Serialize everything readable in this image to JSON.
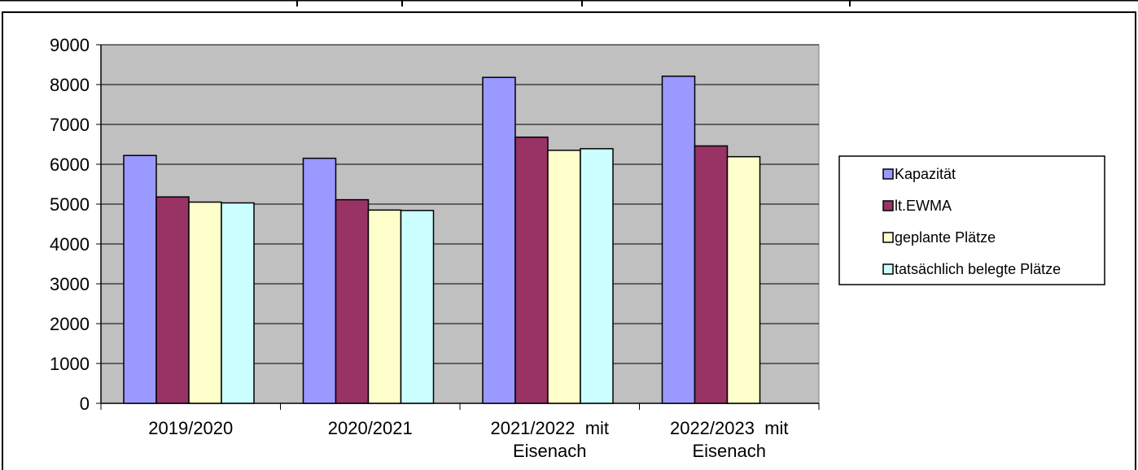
{
  "colors": {
    "plot_background": "#c0c0c0",
    "gridline": "#000000",
    "bar_outline": "#000000"
  },
  "legend": {
    "placement": "right",
    "items": [
      {
        "label": "Kapazität",
        "color": "#9999ff"
      },
      {
        "label": "lt.EWMA",
        "color": "#993366"
      },
      {
        "label": "geplante Plätze",
        "color": "#ffffcc"
      },
      {
        "label": "tatsächlich belegte Plätze",
        "color": "#ccffff"
      }
    ]
  },
  "chart_data": {
    "type": "bar",
    "title": "",
    "xlabel": "",
    "ylabel": "",
    "grid": true,
    "ylim": [
      0,
      9000
    ],
    "yticks": [
      0,
      1000,
      2000,
      3000,
      4000,
      5000,
      6000,
      7000,
      8000,
      9000
    ],
    "categories": [
      [
        "2019/2020"
      ],
      [
        "2020/2021"
      ],
      [
        "2021/2022  mit",
        "Eisenach"
      ],
      [
        "2022/2023  mit",
        "Eisenach"
      ]
    ],
    "series": [
      {
        "name": "Kapazität",
        "values": [
          6220,
          6150,
          8180,
          8210
        ]
      },
      {
        "name": "lt.EWMA",
        "values": [
          5180,
          5110,
          6680,
          6460
        ]
      },
      {
        "name": "geplante Plätze",
        "values": [
          5050,
          4850,
          6350,
          6190
        ]
      },
      {
        "name": "tatsächlich belegte Plätze",
        "values": [
          5030,
          4840,
          6390,
          null
        ]
      }
    ]
  }
}
